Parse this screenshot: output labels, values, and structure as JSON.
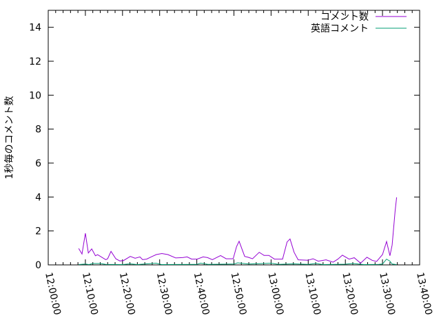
{
  "chart_data": {
    "type": "line",
    "title": "",
    "xlabel": "",
    "ylabel": "1秒毎のコメント数",
    "xlim": [
      "12:00:00",
      "13:40:00"
    ],
    "ylim": [
      0,
      15
    ],
    "x_ticks": [
      "12:00:00",
      "12:10:00",
      "12:20:00",
      "12:30:00",
      "12:40:00",
      "12:50:00",
      "13:00:00",
      "13:10:00",
      "13:20:00",
      "13:30:00",
      "13:40:00"
    ],
    "y_ticks": [
      "0",
      "2",
      "4",
      "6",
      "8",
      "10",
      "12",
      "14"
    ],
    "grid": false,
    "legend_position": "top-right",
    "series": [
      {
        "name": "コメント数",
        "color": "#9400d3",
        "points": [
          [
            "12:08:12",
            0.97
          ],
          [
            "12:09:06",
            0.64
          ],
          [
            "12:10:00",
            1.86
          ],
          [
            "12:10:48",
            0.7
          ],
          [
            "12:11:42",
            0.94
          ],
          [
            "12:12:42",
            0.54
          ],
          [
            "12:13:18",
            0.6
          ],
          [
            "12:15:30",
            0.31
          ],
          [
            "12:16:00",
            0.36
          ],
          [
            "12:16:54",
            0.8
          ],
          [
            "12:18:12",
            0.36
          ],
          [
            "12:19:18",
            0.23
          ],
          [
            "12:20:18",
            0.26
          ],
          [
            "12:22:06",
            0.5
          ],
          [
            "12:23:24",
            0.39
          ],
          [
            "12:24:42",
            0.47
          ],
          [
            "12:25:24",
            0.31
          ],
          [
            "12:26:30",
            0.34
          ],
          [
            "12:27:42",
            0.47
          ],
          [
            "12:29:06",
            0.61
          ],
          [
            "12:30:36",
            0.67
          ],
          [
            "12:32:12",
            0.61
          ],
          [
            "12:34:18",
            0.41
          ],
          [
            "12:36:12",
            0.43
          ],
          [
            "12:37:24",
            0.47
          ],
          [
            "12:38:36",
            0.34
          ],
          [
            "12:40:06",
            0.34
          ],
          [
            "12:41:42",
            0.47
          ],
          [
            "12:42:54",
            0.43
          ],
          [
            "12:44:12",
            0.31
          ],
          [
            "12:46:24",
            0.55
          ],
          [
            "12:47:54",
            0.36
          ],
          [
            "12:49:48",
            0.36
          ],
          [
            "12:50:42",
            1.08
          ],
          [
            "12:51:24",
            1.39
          ],
          [
            "12:52:54",
            0.5
          ],
          [
            "12:53:48",
            0.45
          ],
          [
            "12:55:00",
            0.36
          ],
          [
            "12:56:48",
            0.74
          ],
          [
            "12:58:06",
            0.56
          ],
          [
            "12:59:24",
            0.56
          ],
          [
            "13:00:54",
            0.34
          ],
          [
            "13:03:06",
            0.34
          ],
          [
            "13:04:18",
            1.35
          ],
          [
            "13:05:06",
            1.53
          ],
          [
            "13:06:12",
            0.74
          ],
          [
            "13:07:18",
            0.3
          ],
          [
            "13:09:54",
            0.27
          ],
          [
            "13:11:18",
            0.36
          ],
          [
            "13:12:42",
            0.22
          ],
          [
            "13:14:48",
            0.3
          ],
          [
            "13:16:42",
            0.16
          ],
          [
            "13:18:00",
            0.34
          ],
          [
            "13:19:12",
            0.57
          ],
          [
            "13:21:00",
            0.34
          ],
          [
            "13:22:24",
            0.42
          ],
          [
            "13:24:06",
            0.1
          ],
          [
            "13:25:48",
            0.45
          ],
          [
            "13:27:12",
            0.27
          ],
          [
            "13:28:24",
            0.2
          ],
          [
            "13:30:00",
            0.61
          ],
          [
            "13:31:06",
            1.38
          ],
          [
            "13:32:00",
            0.54
          ],
          [
            "13:32:36",
            1.17
          ],
          [
            "13:33:24",
            3.17
          ],
          [
            "13:33:48",
            3.98
          ]
        ]
      },
      {
        "name": "英語コメント",
        "color": "#009e73",
        "points": [
          [
            "12:08:12",
            0.02
          ],
          [
            "12:10:00",
            0.05
          ],
          [
            "12:11:00",
            0.02
          ],
          [
            "12:12:00",
            0.08
          ],
          [
            "12:14:00",
            0.08
          ],
          [
            "12:15:30",
            0.03
          ],
          [
            "12:20:00",
            0.02
          ],
          [
            "12:22:00",
            0.06
          ],
          [
            "12:24:00",
            0.02
          ],
          [
            "12:29:00",
            0.1
          ],
          [
            "12:30:30",
            0.02
          ],
          [
            "12:40:00",
            0.03
          ],
          [
            "12:41:00",
            0.1
          ],
          [
            "12:43:00",
            0.03
          ],
          [
            "12:50:00",
            0.05
          ],
          [
            "12:51:00",
            0.12
          ],
          [
            "12:54:00",
            0.05
          ],
          [
            "12:58:00",
            0.08
          ],
          [
            "13:00:00",
            0.1
          ],
          [
            "13:02:00",
            0.03
          ],
          [
            "13:06:00",
            0.06
          ],
          [
            "13:10:00",
            0.03
          ],
          [
            "13:12:00",
            0.08
          ],
          [
            "13:14:00",
            0.02
          ],
          [
            "13:20:00",
            0.04
          ],
          [
            "13:22:00",
            0.08
          ],
          [
            "13:25:00",
            0.02
          ],
          [
            "13:29:00",
            0.03
          ],
          [
            "13:30:00",
            0.05
          ],
          [
            "13:31:06",
            0.34
          ],
          [
            "13:32:00",
            0.22
          ],
          [
            "13:32:36",
            0.05
          ],
          [
            "13:33:48",
            0.02
          ]
        ]
      }
    ]
  }
}
